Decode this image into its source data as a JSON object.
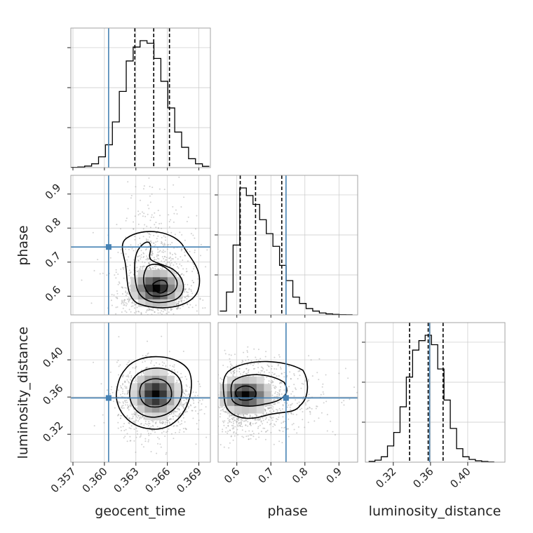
{
  "chart_data": {
    "type": "corner",
    "parameters": [
      {
        "label": "geocent_time",
        "ticks": [
          "0.357",
          "0.360",
          "0.363",
          "0.366",
          "0.369"
        ],
        "tick_values": [
          0.357,
          0.36,
          0.363,
          0.366,
          0.369
        ],
        "range": [
          0.3568,
          0.3701
        ]
      },
      {
        "label": "phase",
        "ticks": [
          "0.6",
          "0.7",
          "0.8",
          "0.9"
        ],
        "tick_values": [
          0.6,
          0.7,
          0.8,
          0.9
        ],
        "range": [
          0.545,
          0.955
        ]
      },
      {
        "label": "luminosity_distance",
        "ticks": [
          "0.32",
          "0.36",
          "0.40"
        ],
        "tick_values": [
          0.32,
          0.36,
          0.4
        ],
        "range": [
          0.29,
          0.44
        ]
      }
    ],
    "truths": [
      0.3604,
      0.7445,
      0.359
    ],
    "truth_color": "#4682b4",
    "quantiles": [
      [
        0.3629,
        0.3647,
        0.3662
      ],
      [
        0.61,
        0.655,
        0.732
      ],
      [
        0.3375,
        0.3575,
        0.3735
      ]
    ],
    "histograms": [
      {
        "edges": [
          0.3568,
          0.37
        ],
        "counts": [
          0.2,
          0.5,
          1.2,
          3.0,
          8.5,
          18,
          36,
          60,
          84,
          95,
          100,
          98,
          86,
          68,
          47,
          28,
          16,
          7,
          3,
          1
        ]
      },
      {
        "edges": [
          0.55,
          0.94
        ],
        "counts": [
          3,
          18,
          55,
          100,
          94,
          87,
          75,
          64,
          54,
          39,
          27,
          14,
          9,
          5,
          3,
          1.5,
          0.8,
          0.4,
          0.2,
          0.1
        ]
      },
      {
        "edges": [
          0.2935,
          0.4285
        ],
        "counts": [
          0.6,
          1.5,
          4,
          12,
          22,
          41,
          63,
          83,
          90,
          94,
          87,
          69,
          46,
          25,
          10,
          4,
          2,
          1,
          0.5,
          0.2
        ]
      }
    ],
    "grid": true
  }
}
